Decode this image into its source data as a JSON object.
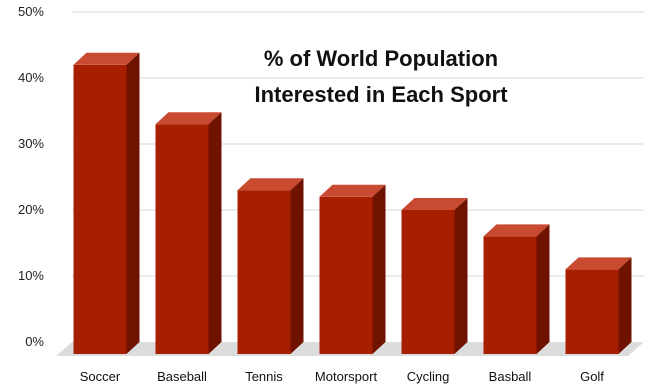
{
  "chart_data": {
    "type": "bar",
    "title_lines": [
      "% of World Population",
      "Interested in Each Sport"
    ],
    "categories": [
      "Soccer",
      "Baseball",
      "Tennis",
      "Motorsport",
      "Cycling",
      "Basball",
      "Golf"
    ],
    "values": [
      42,
      33,
      23,
      22,
      20,
      16,
      11
    ],
    "ylim": [
      0,
      50
    ],
    "yticks": [
      "0%",
      "10%",
      "20%",
      "30%",
      "40%",
      "50%"
    ],
    "ytick_values": [
      0,
      10,
      20,
      30,
      40,
      50
    ],
    "grid": true,
    "legend": "none",
    "colors": {
      "bar_front": "#a81e00",
      "bar_top": "#c84a30",
      "bar_side": "#6f1300",
      "floor": "#dcdcdc"
    }
  }
}
